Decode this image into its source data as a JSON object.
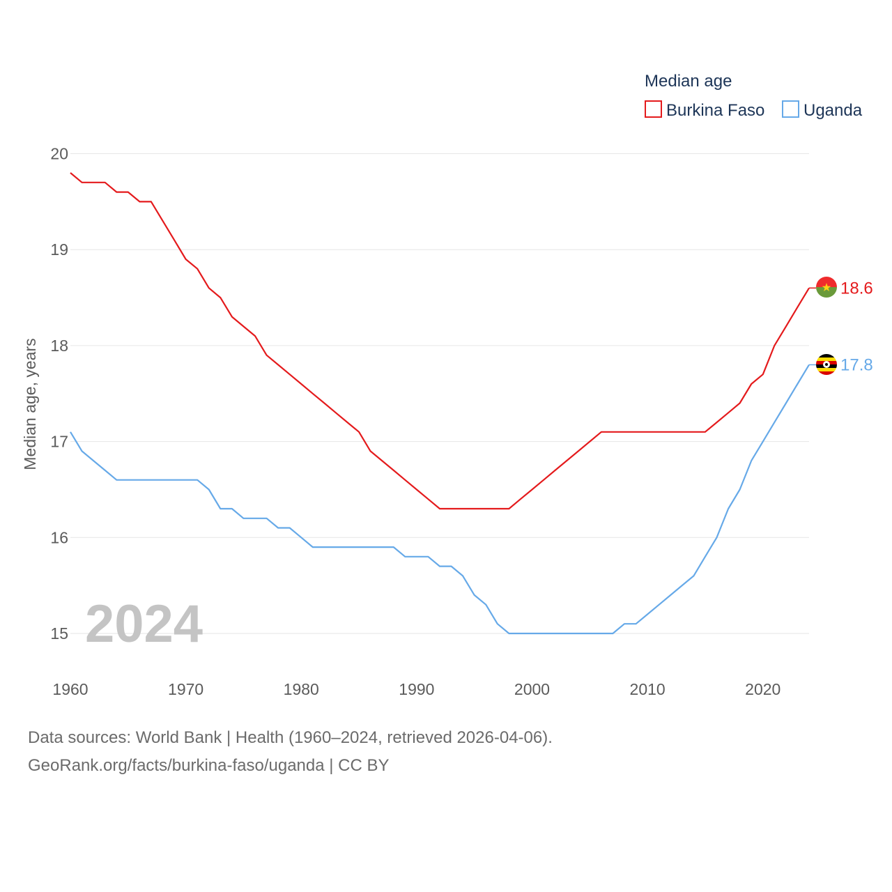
{
  "chart_data": {
    "type": "line",
    "ylabel": "Median age, years",
    "xlabel": "",
    "xlim": [
      1960,
      2024
    ],
    "ylim": [
      14.6,
      20.3
    ],
    "xticks": [
      1960,
      1970,
      1980,
      1990,
      2000,
      2010,
      2020
    ],
    "yticks": [
      15,
      16,
      17,
      18,
      19,
      20
    ],
    "year_label": "2024",
    "legend": {
      "title": "Median age",
      "position": "top-right"
    },
    "x": [
      1960,
      1961,
      1962,
      1963,
      1964,
      1965,
      1966,
      1967,
      1968,
      1969,
      1970,
      1971,
      1972,
      1973,
      1974,
      1975,
      1976,
      1977,
      1978,
      1979,
      1980,
      1981,
      1982,
      1983,
      1984,
      1985,
      1986,
      1987,
      1988,
      1989,
      1990,
      1991,
      1992,
      1993,
      1994,
      1995,
      1996,
      1997,
      1998,
      1999,
      2000,
      2001,
      2002,
      2003,
      2004,
      2005,
      2006,
      2007,
      2008,
      2009,
      2010,
      2011,
      2012,
      2013,
      2014,
      2015,
      2016,
      2017,
      2018,
      2019,
      2020,
      2021,
      2022,
      2023,
      2024
    ],
    "series": [
      {
        "name": "Burkina Faso",
        "color": "#e41a1c",
        "end_label": "18.6",
        "values": [
          19.8,
          19.7,
          19.7,
          19.7,
          19.6,
          19.6,
          19.5,
          19.5,
          19.3,
          19.1,
          18.9,
          18.8,
          18.6,
          18.5,
          18.3,
          18.2,
          18.1,
          17.9,
          17.8,
          17.7,
          17.6,
          17.5,
          17.4,
          17.3,
          17.2,
          17.1,
          16.9,
          16.8,
          16.7,
          16.6,
          16.5,
          16.4,
          16.3,
          16.3,
          16.3,
          16.3,
          16.3,
          16.3,
          16.3,
          16.4,
          16.5,
          16.6,
          16.7,
          16.8,
          16.9,
          17.0,
          17.1,
          17.1,
          17.1,
          17.1,
          17.1,
          17.1,
          17.1,
          17.1,
          17.1,
          17.1,
          17.2,
          17.3,
          17.4,
          17.6,
          17.7,
          18.0,
          18.2,
          18.4,
          18.6
        ]
      },
      {
        "name": "Uganda",
        "color": "#66a9e8",
        "end_label": "17.8",
        "values": [
          17.1,
          16.9,
          16.8,
          16.7,
          16.6,
          16.6,
          16.6,
          16.6,
          16.6,
          16.6,
          16.6,
          16.6,
          16.5,
          16.3,
          16.3,
          16.2,
          16.2,
          16.2,
          16.1,
          16.1,
          16.0,
          15.9,
          15.9,
          15.9,
          15.9,
          15.9,
          15.9,
          15.9,
          15.9,
          15.8,
          15.8,
          15.8,
          15.7,
          15.7,
          15.6,
          15.4,
          15.3,
          15.1,
          15.0,
          15.0,
          15.0,
          15.0,
          15.0,
          15.0,
          15.0,
          15.0,
          15.0,
          15.0,
          15.1,
          15.1,
          15.2,
          15.3,
          15.4,
          15.5,
          15.6,
          15.8,
          16.0,
          16.3,
          16.5,
          16.8,
          17.0,
          17.2,
          17.4,
          17.6,
          17.8
        ]
      }
    ]
  },
  "footer": {
    "line1": "Data sources: World Bank | Health (1960–2024, retrieved 2026-04-06).",
    "line2": "GeoRank.org/facts/burkina-faso/uganda | CC BY"
  }
}
